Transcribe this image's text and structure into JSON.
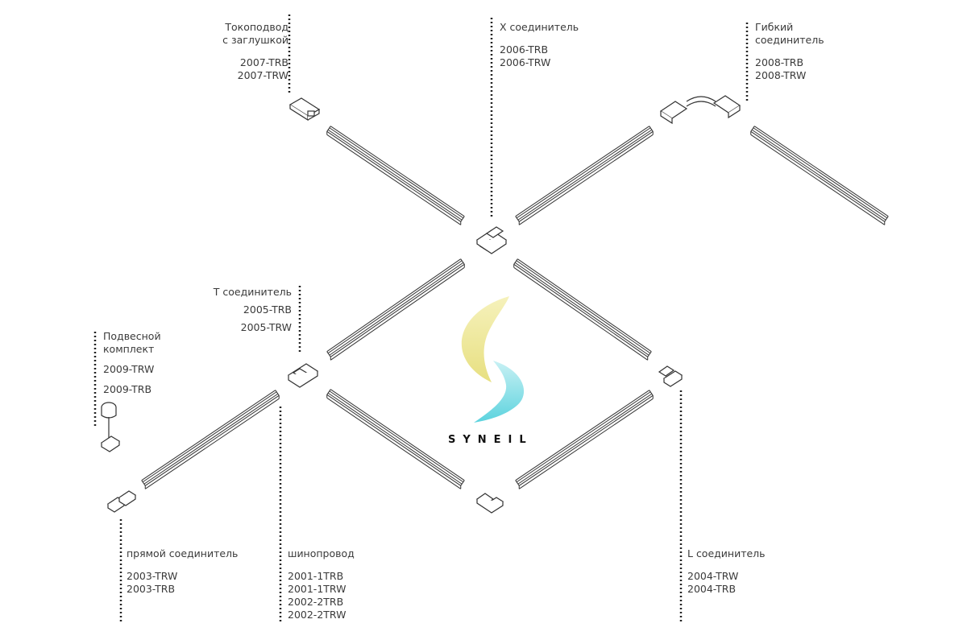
{
  "labels": {
    "feed": {
      "title": [
        "Токоподвод",
        "с заглушкой"
      ],
      "codes": [
        "2007-TRB",
        "2007-TRW"
      ]
    },
    "x_conn": {
      "title": [
        "X соединитель"
      ],
      "codes": [
        "2006-TRB",
        "2006-TRW"
      ]
    },
    "flex": {
      "title": [
        "Гибкий",
        "соединитель"
      ],
      "codes": [
        "2008-TRB",
        "2008-TRW"
      ]
    },
    "t_conn": {
      "title": [
        "T соединитель"
      ],
      "codes": [
        "2005-TRB",
        "2005-TRW"
      ]
    },
    "suspension": {
      "title": [
        "Подвесной",
        "комплект"
      ],
      "codes": [
        "2009-TRW",
        "2009-TRB"
      ]
    },
    "straight": {
      "title": [
        "прямой соединитель"
      ],
      "codes": [
        "2003-TRW",
        "2003-TRB"
      ]
    },
    "track": {
      "title": [
        "шинопровод"
      ],
      "codes": [
        "2001-1TRB",
        "2001-1TRW",
        "2002-2TRB",
        "2002-2TRW"
      ]
    },
    "l_conn": {
      "title": [
        "L соединитель"
      ],
      "codes": [
        "2004-TRW",
        "2004-TRB"
      ]
    }
  },
  "logo": {
    "text": "SYNEIL",
    "colors": [
      "#e8e07a",
      "#4fd0dc"
    ]
  }
}
